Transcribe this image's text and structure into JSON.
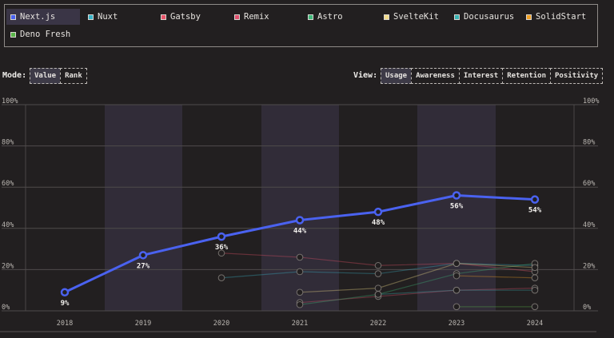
{
  "legend": {
    "items": [
      {
        "label": "Next.js",
        "color": "#4a62f0",
        "active": true
      },
      {
        "label": "Nuxt",
        "color": "#38b4c8",
        "active": false
      },
      {
        "label": "Gatsby",
        "color": "#e8546a",
        "active": false
      },
      {
        "label": "Remix",
        "color": "#e0506e",
        "active": false
      },
      {
        "label": "Astro",
        "color": "#3fb97a",
        "active": false
      },
      {
        "label": "SvelteKit",
        "color": "#f2dc8a",
        "active": false
      },
      {
        "label": "Docusaurus",
        "color": "#38b3b3",
        "active": false
      },
      {
        "label": "SolidStart",
        "color": "#f0a024",
        "active": false
      },
      {
        "label": "Deno Fresh",
        "color": "#58b548",
        "active": false
      }
    ]
  },
  "controls": {
    "mode_label": "Mode:",
    "mode_options": [
      "Value",
      "Rank"
    ],
    "mode_selected": "Value",
    "view_label": "View:",
    "view_options": [
      "Usage",
      "Awareness",
      "Interest",
      "Retention",
      "Positivity"
    ],
    "view_selected": "Usage"
  },
  "chart_data": {
    "type": "line",
    "x": [
      "2018",
      "2019",
      "2020",
      "2021",
      "2022",
      "2023",
      "2024"
    ],
    "ylim": [
      0,
      100
    ],
    "yticks": [
      "0%",
      "20%",
      "40%",
      "60%",
      "80%",
      "100%"
    ],
    "highlighted_series": "Next.js",
    "series": [
      {
        "name": "Next.js",
        "color": "#4a62f0",
        "values": [
          9,
          27,
          36,
          44,
          48,
          56,
          54
        ],
        "labels": [
          "9%",
          "27%",
          "36%",
          "44%",
          "48%",
          "56%",
          "54%"
        ]
      },
      {
        "name": "Gatsby",
        "color": "#e8546a",
        "values": [
          null,
          null,
          28,
          26,
          22,
          23,
          19
        ]
      },
      {
        "name": "Nuxt",
        "color": "#38b4c8",
        "values": [
          null,
          null,
          16,
          19,
          18,
          23,
          22
        ]
      },
      {
        "name": "Remix",
        "color": "#e0506e",
        "values": [
          null,
          null,
          null,
          4,
          7,
          10,
          11
        ]
      },
      {
        "name": "Astro",
        "color": "#3fb97a",
        "values": [
          null,
          null,
          null,
          3,
          8,
          18,
          23
        ]
      },
      {
        "name": "SvelteKit",
        "color": "#f2dc8a",
        "values": [
          null,
          null,
          null,
          9,
          11,
          23,
          21
        ]
      },
      {
        "name": "Docusaurus",
        "color": "#38b3b3",
        "values": [
          null,
          null,
          null,
          null,
          8,
          10,
          10
        ]
      },
      {
        "name": "SolidStart",
        "color": "#f0a024",
        "values": [
          null,
          null,
          null,
          null,
          null,
          17,
          16
        ]
      },
      {
        "name": "Deno Fresh",
        "color": "#58b548",
        "values": [
          null,
          null,
          null,
          null,
          null,
          2,
          2
        ]
      }
    ],
    "grid": true
  }
}
